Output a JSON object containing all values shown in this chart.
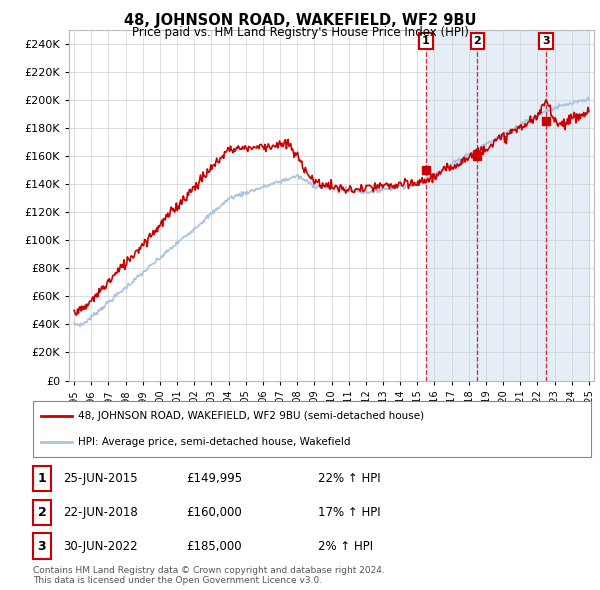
{
  "title": "48, JOHNSON ROAD, WAKEFIELD, WF2 9BU",
  "subtitle": "Price paid vs. HM Land Registry's House Price Index (HPI)",
  "ylim": [
    0,
    250000
  ],
  "yticks": [
    0,
    20000,
    40000,
    60000,
    80000,
    100000,
    120000,
    140000,
    160000,
    180000,
    200000,
    220000,
    240000
  ],
  "background_color": "#ffffff",
  "plot_bg_color": "#ffffff",
  "grid_color": "#d0d0d0",
  "hpi_color": "#a8c4e0",
  "price_color": "#cc0000",
  "sale_marker_color": "#cc0000",
  "sale_events": [
    {
      "year": 2015.5,
      "price": 149995,
      "label": "1"
    },
    {
      "year": 2018.5,
      "price": 160000,
      "label": "2"
    },
    {
      "year": 2022.5,
      "price": 185000,
      "label": "3"
    }
  ],
  "legend_entries": [
    {
      "color": "#cc0000",
      "label": "48, JOHNSON ROAD, WAKEFIELD, WF2 9BU (semi-detached house)"
    },
    {
      "color": "#a8c4e0",
      "label": "HPI: Average price, semi-detached house, Wakefield"
    }
  ],
  "table_rows": [
    {
      "num": "1",
      "date": "25-JUN-2015",
      "price": "£149,995",
      "change": "22% ↑ HPI"
    },
    {
      "num": "2",
      "date": "22-JUN-2018",
      "price": "£160,000",
      "change": "17% ↑ HPI"
    },
    {
      "num": "3",
      "date": "30-JUN-2022",
      "price": "£185,000",
      "change": "2% ↑ HPI"
    }
  ],
  "footnote": "Contains HM Land Registry data © Crown copyright and database right 2024.\nThis data is licensed under the Open Government Licence v3.0.",
  "xstart": 1995,
  "xend": 2025
}
